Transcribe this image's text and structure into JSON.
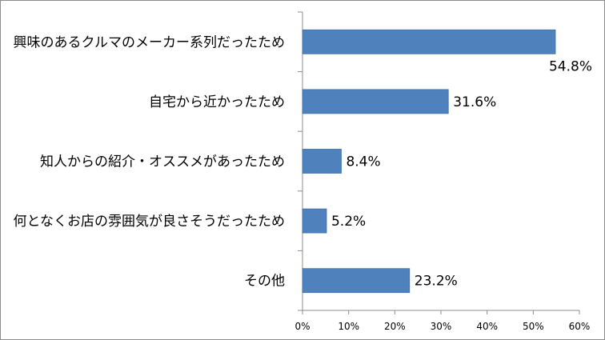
{
  "chart_data": {
    "type": "bar",
    "orientation": "horizontal",
    "categories": [
      "興味のあるクルマのメーカー系列だったため",
      "自宅から近かったため",
      "知人からの紹介・オススメがあったため",
      "何となくお店の雰囲気が良さそうだったため",
      "その他"
    ],
    "values": [
      54.8,
      31.6,
      8.4,
      5.2,
      23.2
    ],
    "value_labels": [
      "54.8%",
      "31.6%",
      "8.4%",
      "5.2%",
      "23.2%"
    ],
    "xlim": [
      0,
      60
    ],
    "xticks": [
      0,
      10,
      20,
      30,
      40,
      50,
      60
    ],
    "xtick_labels": [
      "0%",
      "10%",
      "20%",
      "30%",
      "40%",
      "50%",
      "60%"
    ],
    "bar_color": "#4f81bd",
    "gridlines": false,
    "title": "",
    "xlabel": "",
    "ylabel": ""
  }
}
